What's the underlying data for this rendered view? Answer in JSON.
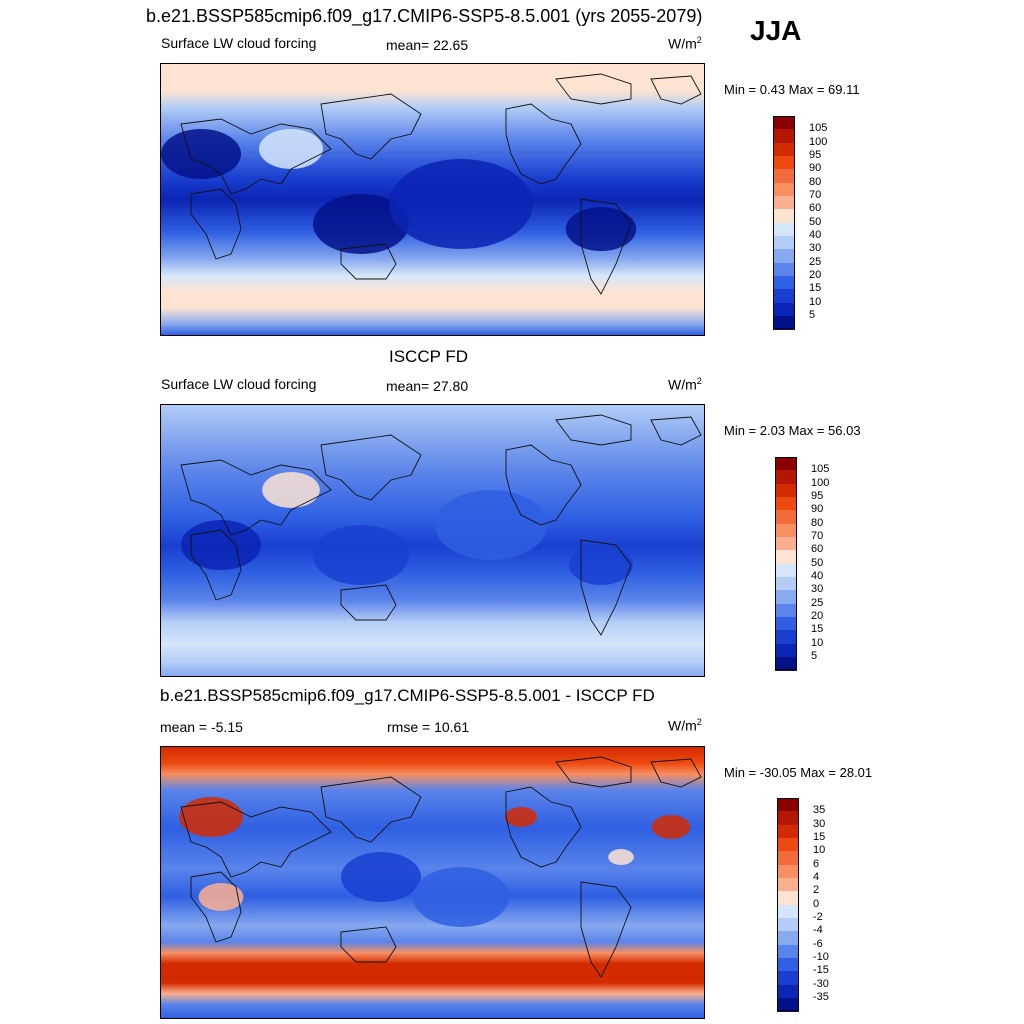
{
  "header": {
    "main_title": "b.e21.BSSP585cmip6.f09_g17.CMIP6-SSP5-8.5.001 (yrs 2055-2079)",
    "season": "JJA"
  },
  "panels": [
    {
      "id": "model",
      "title": "",
      "left_label": "Surface LW cloud forcing",
      "center_label": "mean=  22.65",
      "units_base": "W/m",
      "units_exp": "2",
      "minmax": "Min =   0.43 Max =  69.11",
      "colorbar": {
        "labels": [
          "105",
          "100",
          "95",
          "90",
          "80",
          "70",
          "60",
          "50",
          "40",
          "30",
          "25",
          "20",
          "15",
          "10",
          "5"
        ],
        "colors": [
          "#8a0000",
          "#b51600",
          "#d42a00",
          "#ee4a10",
          "#f26b3a",
          "#f78f62",
          "#fab090",
          "#fde3d2",
          "#d5e6fb",
          "#b3cdf6",
          "#86a9ef",
          "#5a84ea",
          "#2f5fe2",
          "#1a3fd0",
          "#0b25b4",
          "#04128a"
        ]
      }
    },
    {
      "id": "obs",
      "title": "ISCCP FD",
      "left_label": "Surface LW cloud forcing",
      "center_label": "mean=  27.80",
      "units_base": "W/m",
      "units_exp": "2",
      "minmax": "Min =   2.03 Max =  56.03",
      "colorbar": {
        "labels": [
          "105",
          "100",
          "95",
          "90",
          "80",
          "70",
          "60",
          "50",
          "40",
          "30",
          "25",
          "20",
          "15",
          "10",
          "5"
        ],
        "colors": [
          "#8a0000",
          "#b51600",
          "#d42a00",
          "#ee4a10",
          "#f26b3a",
          "#f78f62",
          "#fab090",
          "#fde3d2",
          "#d5e6fb",
          "#b3cdf6",
          "#86a9ef",
          "#5a84ea",
          "#2f5fe2",
          "#1a3fd0",
          "#0b25b4",
          "#04128a"
        ]
      }
    },
    {
      "id": "diff",
      "title": "b.e21.BSSP585cmip6.f09_g17.CMIP6-SSP5-8.5.001 - ISCCP FD",
      "left_label": "mean =  -5.15",
      "center_label": "rmse =  10.61",
      "units_base": "W/m",
      "units_exp": "2",
      "minmax": "Min = -30.05 Max =  28.01",
      "colorbar": {
        "labels": [
          "35",
          "30",
          "15",
          "10",
          "6",
          "4",
          "2",
          "0",
          "-2",
          "-4",
          "-6",
          "-10",
          "-15",
          "-30",
          "-35"
        ],
        "colors": [
          "#8a0000",
          "#b51600",
          "#d42a00",
          "#ee4a10",
          "#f26b3a",
          "#f78f62",
          "#fab090",
          "#fde3d2",
          "#d5e6fb",
          "#b3cdf6",
          "#86a9ef",
          "#5a84ea",
          "#2f5fe2",
          "#1a3fd0",
          "#0b25b4",
          "#04128a"
        ]
      }
    }
  ]
}
